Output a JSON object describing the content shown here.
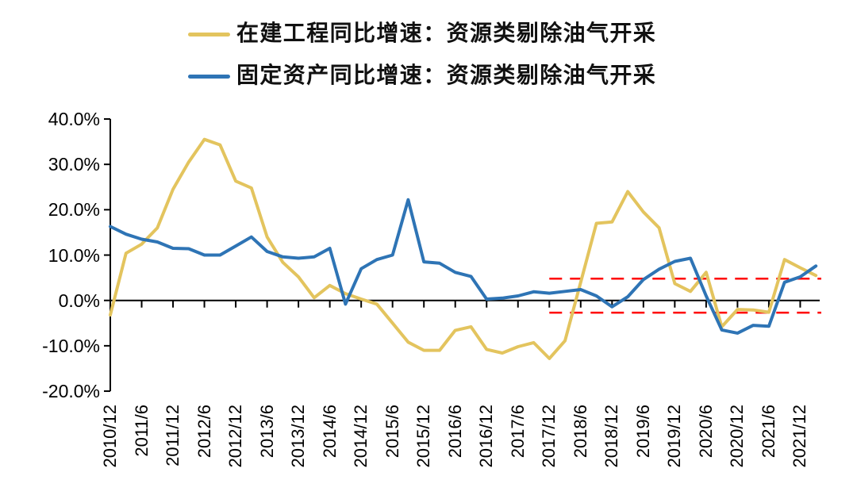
{
  "page": {
    "background": "#FFFFFF"
  },
  "chart_data": {
    "type": "line",
    "title": "",
    "legend_position": "top-center",
    "grid": false,
    "axis_color": "#000000",
    "x": [
      "2010/12",
      "2011/3",
      "2011/6",
      "2011/9",
      "2011/12",
      "2012/3",
      "2012/6",
      "2012/9",
      "2012/12",
      "2013/3",
      "2013/6",
      "2013/9",
      "2013/12",
      "2014/3",
      "2014/6",
      "2014/9",
      "2014/12",
      "2015/3",
      "2015/6",
      "2015/9",
      "2015/12",
      "2016/3",
      "2016/6",
      "2016/9",
      "2016/12",
      "2017/3",
      "2017/6",
      "2017/9",
      "2017/12",
      "2018/3",
      "2018/6",
      "2018/9",
      "2018/12",
      "2019/3",
      "2019/6",
      "2019/9",
      "2019/12",
      "2020/3",
      "2020/6",
      "2020/9",
      "2020/12",
      "2021/3",
      "2021/6",
      "2021/9",
      "2021/12",
      "2022/3"
    ],
    "x_axis_tick_labels": [
      "2010/12",
      "2011/6",
      "2011/12",
      "2012/6",
      "2012/12",
      "2013/6",
      "2013/12",
      "2014/6",
      "2014/12",
      "2015/6",
      "2015/12",
      "2016/6",
      "2016/12",
      "2017/6",
      "2017/12",
      "2018/6",
      "2018/12",
      "2019/6",
      "2019/12",
      "2020/6",
      "2020/12",
      "2021/6",
      "2021/12"
    ],
    "series": [
      {
        "name": "在建工程同比增速：资源类剔除油气开采",
        "color": "#E3C45E",
        "values": [
          -3.2,
          10.4,
          12.4,
          16.0,
          24.5,
          30.5,
          35.5,
          34.3,
          26.3,
          24.8,
          14.0,
          8.4,
          5.2,
          0.6,
          3.3,
          1.5,
          0.3,
          -0.8,
          -5.0,
          -9.2,
          -11.0,
          -11.0,
          -6.6,
          -5.8,
          -10.8,
          -11.6,
          -10.2,
          -9.3,
          -12.8,
          -8.9,
          4.0,
          17.0,
          17.3,
          24.0,
          19.5,
          16.0,
          3.7,
          2.0,
          6.2,
          -5.8,
          -2.0,
          -2.1,
          -2.6,
          9.0,
          7.2,
          5.5
        ]
      },
      {
        "name": "固定资产同比增速：资源类剔除油气开采",
        "color": "#2E74B5",
        "values": [
          16.3,
          14.6,
          13.5,
          12.9,
          11.5,
          11.4,
          10.0,
          10.0,
          12.0,
          14.0,
          10.8,
          9.6,
          9.3,
          9.6,
          11.5,
          -0.8,
          7.0,
          9.0,
          10.0,
          22.2,
          8.5,
          8.2,
          6.2,
          5.3,
          0.3,
          0.5,
          1.0,
          1.9,
          1.6,
          2.0,
          2.4,
          1.0,
          -1.4,
          0.8,
          4.6,
          6.9,
          8.6,
          9.3,
          1.0,
          -6.5,
          -7.2,
          -5.5,
          -5.7,
          4.0,
          5.2,
          7.6
        ]
      }
    ],
    "y_axis": {
      "min": -20,
      "max": 40,
      "tick_step": 10,
      "unit": "%",
      "ticks": [
        40,
        30,
        20,
        10,
        0,
        -10,
        -20
      ],
      "tick_labels": [
        "40.0%",
        "30.0%",
        "20.0%",
        "10.0%",
        "0.0%",
        "-10.0%",
        "-20.0%"
      ]
    },
    "reference_lines": [
      {
        "y": 4.8,
        "start_x": "2017/12",
        "end_x": "2022/3",
        "color": "#FF0000",
        "style": "dashed"
      },
      {
        "y": -2.7,
        "start_x": "2017/12",
        "end_x": "2022/3",
        "color": "#FF0000",
        "style": "dashed"
      }
    ]
  }
}
